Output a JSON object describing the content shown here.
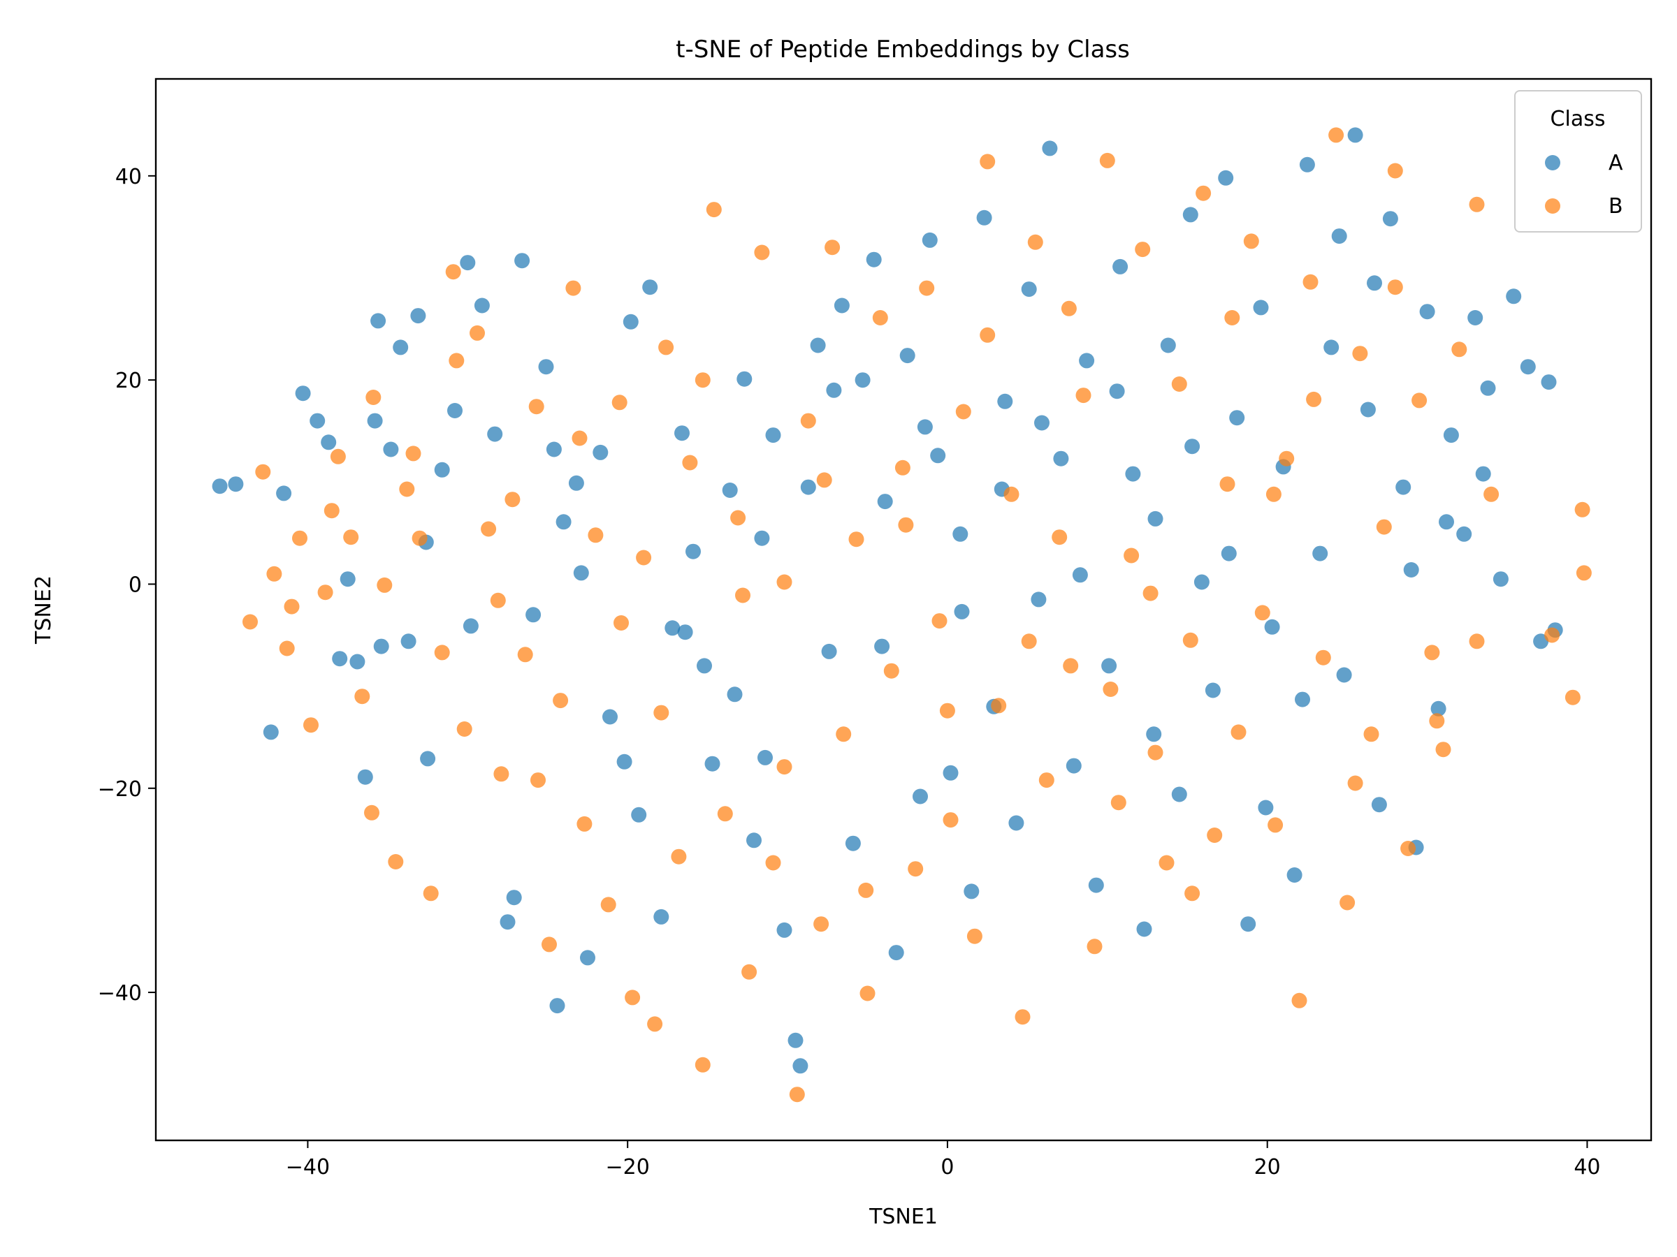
{
  "chart_data": {
    "type": "scatter",
    "title": "t-SNE of Peptide Embeddings by Class",
    "xlabel": "TSNE1",
    "ylabel": "TSNE2",
    "xlim": [
      -49.5,
      44.0
    ],
    "ylim": [
      -54.5,
      49.5
    ],
    "xticks": [
      -40,
      -20,
      0,
      20,
      40
    ],
    "yticks": [
      -40,
      -20,
      0,
      20,
      40
    ],
    "grid": false,
    "legend": {
      "title": "Class",
      "placement": "top-right"
    },
    "marker_alpha": 0.7,
    "series": [
      {
        "name": "A",
        "color": "#1f77b4",
        "points": [
          [
            -45.5,
            9.6
          ],
          [
            -44.5,
            9.8
          ],
          [
            -42.3,
            -14.5
          ],
          [
            -41.5,
            8.9
          ],
          [
            -40.3,
            18.7
          ],
          [
            -39.4,
            16.0
          ],
          [
            -38.7,
            13.9
          ],
          [
            -37.5,
            0.5
          ],
          [
            -36.9,
            -7.6
          ],
          [
            -36.4,
            -18.9
          ],
          [
            -35.8,
            16.0
          ],
          [
            -35.6,
            25.8
          ],
          [
            -34.8,
            13.2
          ],
          [
            -34.2,
            23.2
          ],
          [
            -33.7,
            -5.6
          ],
          [
            -33.1,
            26.3
          ],
          [
            -32.5,
            -17.1
          ],
          [
            -31.6,
            11.2
          ],
          [
            -30.8,
            17.0
          ],
          [
            -30.0,
            31.5
          ],
          [
            -29.1,
            27.3
          ],
          [
            -28.3,
            14.7
          ],
          [
            -27.5,
            -33.1
          ],
          [
            -26.6,
            31.7
          ],
          [
            -25.9,
            -3.0
          ],
          [
            -25.1,
            21.3
          ],
          [
            -24.6,
            13.2
          ],
          [
            -24.0,
            6.1
          ],
          [
            -23.2,
            9.9
          ],
          [
            -22.5,
            -36.6
          ],
          [
            -21.7,
            12.9
          ],
          [
            -21.1,
            -13.0
          ],
          [
            -20.2,
            -17.4
          ],
          [
            -19.3,
            -22.6
          ],
          [
            -18.6,
            29.1
          ],
          [
            -17.9,
            -32.6
          ],
          [
            -17.2,
            -4.3
          ],
          [
            -16.6,
            14.8
          ],
          [
            -15.9,
            3.2
          ],
          [
            -15.2,
            -8.0
          ],
          [
            -14.7,
            -17.6
          ],
          [
            -13.6,
            9.2
          ],
          [
            -12.7,
            20.1
          ],
          [
            -12.1,
            -25.1
          ],
          [
            -11.4,
            -17.0
          ],
          [
            -10.9,
            14.6
          ],
          [
            -10.2,
            -33.9
          ],
          [
            -9.5,
            -44.7
          ],
          [
            -8.7,
            9.5
          ],
          [
            -8.1,
            23.4
          ],
          [
            -7.4,
            -6.6
          ],
          [
            -6.6,
            27.3
          ],
          [
            -5.9,
            -25.4
          ],
          [
            -5.3,
            20.0
          ],
          [
            -4.6,
            31.8
          ],
          [
            -3.9,
            8.1
          ],
          [
            -3.2,
            -36.1
          ],
          [
            -2.5,
            22.4
          ],
          [
            -1.7,
            -20.8
          ],
          [
            -1.1,
            33.7
          ],
          [
            -0.6,
            12.6
          ],
          [
            0.2,
            -18.5
          ],
          [
            0.8,
            4.9
          ],
          [
            1.5,
            -30.1
          ],
          [
            2.3,
            35.9
          ],
          [
            2.9,
            -12.0
          ],
          [
            3.6,
            17.9
          ],
          [
            4.3,
            -23.4
          ],
          [
            5.1,
            28.9
          ],
          [
            5.7,
            -1.5
          ],
          [
            6.4,
            42.7
          ],
          [
            7.1,
            12.3
          ],
          [
            7.9,
            -17.8
          ],
          [
            8.7,
            21.9
          ],
          [
            9.3,
            -29.5
          ],
          [
            10.1,
            -8.0
          ],
          [
            10.8,
            31.1
          ],
          [
            11.6,
            10.8
          ],
          [
            12.3,
            -33.8
          ],
          [
            13.0,
            6.4
          ],
          [
            13.8,
            23.4
          ],
          [
            14.5,
            -20.6
          ],
          [
            15.2,
            36.2
          ],
          [
            15.9,
            0.2
          ],
          [
            16.6,
            -10.4
          ],
          [
            17.4,
            39.8
          ],
          [
            18.1,
            16.3
          ],
          [
            18.8,
            -33.3
          ],
          [
            19.6,
            27.1
          ],
          [
            20.3,
            -4.2
          ],
          [
            21.0,
            11.5
          ],
          [
            21.7,
            -28.5
          ],
          [
            22.5,
            41.1
          ],
          [
            23.3,
            3.0
          ],
          [
            24.0,
            23.2
          ],
          [
            24.8,
            -8.9
          ],
          [
            25.5,
            44.0
          ],
          [
            26.3,
            17.1
          ],
          [
            27.0,
            -21.6
          ],
          [
            27.7,
            35.8
          ],
          [
            28.5,
            9.5
          ],
          [
            29.3,
            -25.8
          ],
          [
            30.0,
            26.7
          ],
          [
            30.7,
            -12.2
          ],
          [
            31.5,
            14.6
          ],
          [
            32.3,
            4.9
          ],
          [
            33.0,
            26.1
          ],
          [
            33.8,
            19.2
          ],
          [
            34.6,
            0.5
          ],
          [
            35.4,
            28.2
          ],
          [
            36.3,
            21.3
          ],
          [
            37.1,
            -5.6
          ],
          [
            37.6,
            19.8
          ],
          [
            38.0,
            -4.5
          ],
          [
            -38.0,
            -7.3
          ],
          [
            -35.4,
            -6.1
          ],
          [
            -32.6,
            4.1
          ],
          [
            -29.8,
            -4.1
          ],
          [
            -27.1,
            -30.7
          ],
          [
            -24.4,
            -41.3
          ],
          [
            -22.9,
            1.1
          ],
          [
            -19.8,
            25.7
          ],
          [
            -16.4,
            -4.7
          ],
          [
            -13.3,
            -10.8
          ],
          [
            -11.6,
            4.5
          ],
          [
            -9.2,
            -47.2
          ],
          [
            -7.1,
            19.0
          ],
          [
            -4.1,
            -6.1
          ],
          [
            -1.4,
            15.4
          ],
          [
            0.9,
            -2.7
          ],
          [
            3.4,
            9.3
          ],
          [
            5.9,
            15.8
          ],
          [
            8.3,
            0.9
          ],
          [
            10.6,
            18.9
          ],
          [
            12.9,
            -14.7
          ],
          [
            15.3,
            13.5
          ],
          [
            17.6,
            3.0
          ],
          [
            19.9,
            -21.9
          ],
          [
            22.2,
            -11.3
          ],
          [
            24.5,
            34.1
          ],
          [
            26.7,
            29.5
          ],
          [
            29.0,
            1.4
          ],
          [
            31.2,
            6.1
          ],
          [
            33.5,
            10.8
          ]
        ]
      },
      {
        "name": "B",
        "color": "#ff7f0e",
        "points": [
          [
            -43.6,
            -3.7
          ],
          [
            -42.8,
            11.0
          ],
          [
            -42.1,
            1.0
          ],
          [
            -41.3,
            -6.3
          ],
          [
            -40.5,
            4.5
          ],
          [
            -39.8,
            -13.8
          ],
          [
            -38.9,
            -0.8
          ],
          [
            -38.1,
            12.5
          ],
          [
            -37.3,
            4.6
          ],
          [
            -36.6,
            -11.0
          ],
          [
            -35.9,
            18.3
          ],
          [
            -35.2,
            -0.1
          ],
          [
            -34.5,
            -27.2
          ],
          [
            -33.8,
            9.3
          ],
          [
            -33.0,
            4.5
          ],
          [
            -32.3,
            -30.3
          ],
          [
            -31.6,
            -6.7
          ],
          [
            -30.9,
            30.6
          ],
          [
            -30.2,
            -14.2
          ],
          [
            -29.4,
            24.6
          ],
          [
            -28.7,
            5.4
          ],
          [
            -27.9,
            -18.6
          ],
          [
            -27.2,
            8.3
          ],
          [
            -26.4,
            -6.9
          ],
          [
            -25.7,
            17.4
          ],
          [
            -24.9,
            -35.3
          ],
          [
            -24.2,
            -11.4
          ],
          [
            -23.4,
            29.0
          ],
          [
            -22.7,
            -23.5
          ],
          [
            -22.0,
            4.8
          ],
          [
            -21.2,
            -31.4
          ],
          [
            -20.5,
            17.8
          ],
          [
            -19.7,
            -40.5
          ],
          [
            -19.0,
            2.6
          ],
          [
            -18.3,
            -43.1
          ],
          [
            -17.6,
            23.2
          ],
          [
            -16.8,
            -26.7
          ],
          [
            -16.1,
            11.9
          ],
          [
            -15.3,
            -47.1
          ],
          [
            -14.6,
            36.7
          ],
          [
            -13.9,
            -22.5
          ],
          [
            -13.1,
            6.5
          ],
          [
            -12.4,
            -38.0
          ],
          [
            -11.6,
            32.5
          ],
          [
            -10.9,
            -27.3
          ],
          [
            -10.2,
            0.2
          ],
          [
            -9.4,
            -50.0
          ],
          [
            -8.7,
            16.0
          ],
          [
            -7.9,
            -33.3
          ],
          [
            -7.2,
            33.0
          ],
          [
            -6.5,
            -14.7
          ],
          [
            -5.7,
            4.4
          ],
          [
            -5.0,
            -40.1
          ],
          [
            -4.2,
            26.1
          ],
          [
            -3.5,
            -8.5
          ],
          [
            -2.8,
            11.4
          ],
          [
            -2.0,
            -27.9
          ],
          [
            -1.3,
            29.0
          ],
          [
            -0.5,
            -3.6
          ],
          [
            0.2,
            -23.1
          ],
          [
            1.0,
            16.9
          ],
          [
            1.7,
            -34.5
          ],
          [
            2.5,
            41.4
          ],
          [
            3.2,
            -11.9
          ],
          [
            4.0,
            8.8
          ],
          [
            4.7,
            -42.4
          ],
          [
            5.5,
            33.5
          ],
          [
            6.2,
            -19.2
          ],
          [
            7.0,
            4.6
          ],
          [
            7.7,
            -8.0
          ],
          [
            8.5,
            18.5
          ],
          [
            9.2,
            -35.5
          ],
          [
            10.0,
            41.5
          ],
          [
            10.7,
            -21.4
          ],
          [
            11.5,
            2.8
          ],
          [
            12.2,
            32.8
          ],
          [
            13.0,
            -16.5
          ],
          [
            13.7,
            -27.3
          ],
          [
            14.5,
            19.6
          ],
          [
            15.2,
            -5.5
          ],
          [
            16.0,
            38.3
          ],
          [
            16.7,
            -24.6
          ],
          [
            17.5,
            9.8
          ],
          [
            18.2,
            -14.5
          ],
          [
            19.0,
            33.6
          ],
          [
            19.7,
            -2.8
          ],
          [
            20.5,
            -23.6
          ],
          [
            21.2,
            12.3
          ],
          [
            22.0,
            -40.8
          ],
          [
            22.7,
            29.6
          ],
          [
            23.5,
            -7.2
          ],
          [
            24.3,
            44.0
          ],
          [
            25.0,
            -31.2
          ],
          [
            25.8,
            22.6
          ],
          [
            26.5,
            -14.7
          ],
          [
            27.3,
            5.6
          ],
          [
            28.0,
            40.5
          ],
          [
            28.8,
            -25.9
          ],
          [
            29.5,
            18.0
          ],
          [
            30.3,
            -6.7
          ],
          [
            31.0,
            -16.2
          ],
          [
            32.0,
            23.0
          ],
          [
            33.1,
            37.2
          ],
          [
            34.0,
            8.8
          ],
          [
            37.8,
            -5.0
          ],
          [
            39.1,
            -11.1
          ],
          [
            39.7,
            7.3
          ],
          [
            39.8,
            1.1
          ],
          [
            -41.0,
            -2.2
          ],
          [
            -38.5,
            7.2
          ],
          [
            -36.0,
            -22.4
          ],
          [
            -33.4,
            12.8
          ],
          [
            -30.7,
            21.9
          ],
          [
            -28.1,
            -1.6
          ],
          [
            -25.6,
            -19.2
          ],
          [
            -23.0,
            14.3
          ],
          [
            -20.4,
            -3.8
          ],
          [
            -17.9,
            -12.6
          ],
          [
            -15.3,
            20.0
          ],
          [
            -12.8,
            -1.1
          ],
          [
            -10.2,
            -17.9
          ],
          [
            -7.7,
            10.2
          ],
          [
            -5.1,
            -30.0
          ],
          [
            -2.6,
            5.8
          ],
          [
            0.0,
            -12.4
          ],
          [
            2.5,
            24.4
          ],
          [
            5.1,
            -5.6
          ],
          [
            7.6,
            27.0
          ],
          [
            10.2,
            -10.3
          ],
          [
            12.7,
            -0.9
          ],
          [
            15.3,
            -30.3
          ],
          [
            17.8,
            26.1
          ],
          [
            20.4,
            8.8
          ],
          [
            22.9,
            18.1
          ],
          [
            25.5,
            -19.5
          ],
          [
            28.0,
            29.1
          ],
          [
            30.6,
            -13.4
          ],
          [
            33.1,
            -5.6
          ]
        ]
      }
    ]
  }
}
